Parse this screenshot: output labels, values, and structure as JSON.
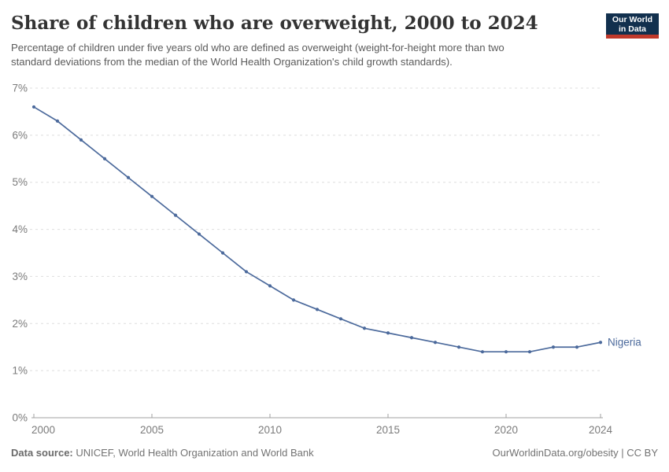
{
  "header": {
    "title": "Share of children who are overweight, 2000 to 2024",
    "subtitle_lines": [
      "Percentage of children under five years old who are defined as overweight (weight-for-height more than two",
      "standard deviations from the median of the World Health Organization's child growth standards)."
    ],
    "logo": {
      "line1": "Our World",
      "line2": "in Data",
      "bg_color": "#12304e",
      "accent_color": "#c0392b"
    }
  },
  "chart_data": {
    "type": "line",
    "title": "Share of children who are overweight, 2000 to 2024",
    "x": [
      2000,
      2001,
      2002,
      2003,
      2004,
      2005,
      2006,
      2007,
      2008,
      2009,
      2010,
      2011,
      2012,
      2013,
      2014,
      2015,
      2016,
      2017,
      2018,
      2019,
      2020,
      2021,
      2022,
      2023,
      2024
    ],
    "series": [
      {
        "name": "Nigeria",
        "color": "#4C6A9C",
        "values": [
          6.6,
          6.3,
          5.9,
          5.5,
          5.1,
          4.7,
          4.3,
          3.9,
          3.5,
          3.1,
          2.8,
          2.5,
          2.3,
          2.1,
          1.9,
          1.8,
          1.7,
          1.6,
          1.5,
          1.4,
          1.4,
          1.4,
          1.5,
          1.5,
          1.6
        ]
      }
    ],
    "xlabel": "",
    "ylabel": "",
    "ylim": [
      0,
      7
    ],
    "y_tick_step": 1,
    "y_tick_suffix": "%",
    "x_ticks": [
      2000,
      2005,
      2010,
      2015,
      2020,
      2024
    ],
    "grid": true,
    "legend_position": "end-of-line",
    "end_label": "Nigeria"
  },
  "footer": {
    "source_label": "Data source:",
    "source_text": " UNICEF, World Health Organization and World Bank",
    "credit": "OurWorldinData.org/obesity | CC BY"
  },
  "colors": {
    "line": "#4C6A9C",
    "grid": "#dedede",
    "axis": "#a1a1a1",
    "tick_label": "#7b7b7b",
    "title": "#333333",
    "subtitle": "#5b5b5b",
    "footer": "#737373"
  }
}
